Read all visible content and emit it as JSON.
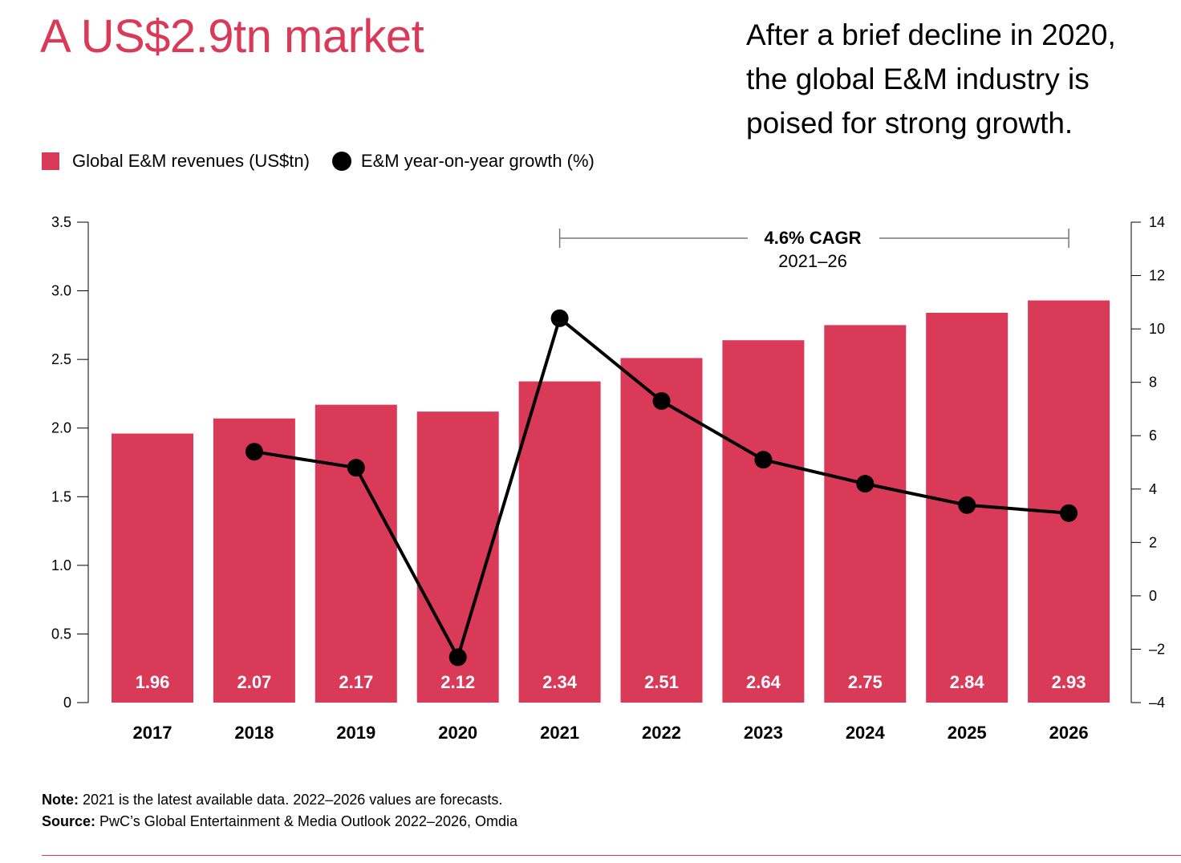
{
  "title": "A US$2.9tn market",
  "subtitle": "After a brief decline in 2020, the global E&M industry is poised for strong growth.",
  "legend": {
    "bars_label": "Global E&M revenues (US$tn)",
    "line_label": "E&M year-on-year growth (%)"
  },
  "annotation": {
    "headline": "4.6% CAGR",
    "period": "2021–26"
  },
  "notes": {
    "note_label": "Note:",
    "note_text": "2021 is the latest available data. 2022–2026 values are forecasts.",
    "source_label": "Source:",
    "source_text": "PwC’s Global Entertainment & Media Outlook 2022–2026, Omdia"
  },
  "colors": {
    "bar": "#d93a57",
    "line": "#000000",
    "accent": "#d93a57"
  },
  "chart_data": {
    "type": "bar",
    "categories": [
      "2017",
      "2018",
      "2019",
      "2020",
      "2021",
      "2022",
      "2023",
      "2024",
      "2025",
      "2026"
    ],
    "series": [
      {
        "name": "Global E&M revenues (US$tn)",
        "type": "bar",
        "axis": "left",
        "values": [
          1.96,
          2.07,
          2.17,
          2.12,
          2.34,
          2.51,
          2.64,
          2.75,
          2.84,
          2.93
        ]
      },
      {
        "name": "E&M year-on-year growth (%)",
        "type": "line",
        "axis": "right",
        "values": [
          null,
          5.4,
          4.8,
          -2.3,
          10.4,
          7.3,
          5.1,
          4.2,
          3.4,
          3.1
        ]
      }
    ],
    "y_left": {
      "lim": [
        0,
        3.5
      ],
      "ticks": [
        "0",
        "0.5",
        "1.0",
        "1.5",
        "2.0",
        "2.5",
        "3.0",
        "3.5"
      ]
    },
    "y_right": {
      "lim": [
        -4,
        14
      ],
      "ticks": [
        "-4",
        "-2",
        "0",
        "2",
        "4",
        "6",
        "8",
        "10",
        "12",
        "14"
      ]
    },
    "grid": false,
    "legend_position": "top-left"
  }
}
